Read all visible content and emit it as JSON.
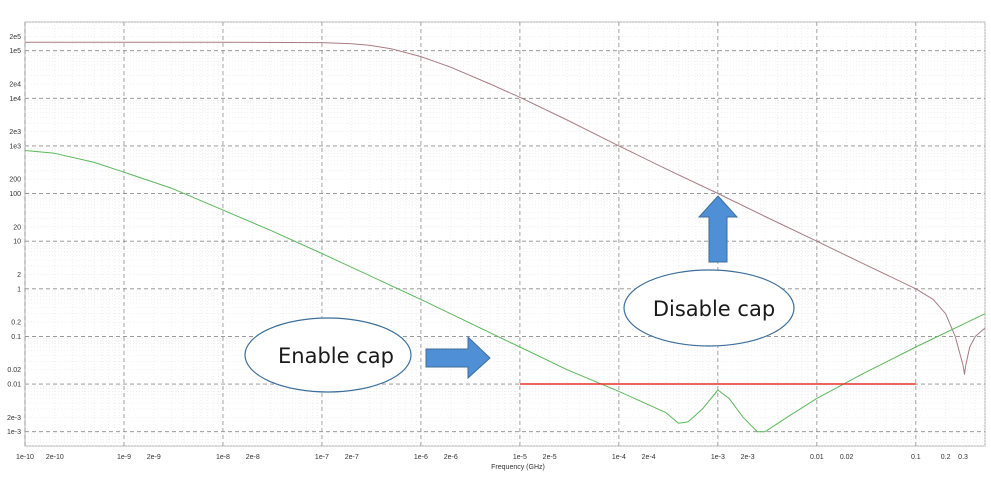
{
  "chart_data": {
    "type": "line",
    "title": "",
    "xlabel": "Frequency (GHz)",
    "ylabel": "",
    "x_scale": "log",
    "y_scale": "log",
    "xlim": [
      1e-10,
      0.5
    ],
    "ylim": [
      0.0005,
      400000
    ],
    "grid": true,
    "x_ticks": [
      {
        "v": 1e-10,
        "label": "1e-10"
      },
      {
        "v": 2e-10,
        "label": "2e-10"
      },
      {
        "v": 1e-09,
        "label": "1e-9"
      },
      {
        "v": 2e-09,
        "label": "2e-9"
      },
      {
        "v": 1e-08,
        "label": "1e-8"
      },
      {
        "v": 2e-08,
        "label": "2e-8"
      },
      {
        "v": 1e-07,
        "label": "1e-7"
      },
      {
        "v": 2e-07,
        "label": "2e-7"
      },
      {
        "v": 1e-06,
        "label": "1e-6"
      },
      {
        "v": 2e-06,
        "label": "2e-6"
      },
      {
        "v": 1e-05,
        "label": "1e-5"
      },
      {
        "v": 2e-05,
        "label": "2e-5"
      },
      {
        "v": 0.0001,
        "label": "1e-4"
      },
      {
        "v": 0.0002,
        "label": "2e-4"
      },
      {
        "v": 0.001,
        "label": "1e-3"
      },
      {
        "v": 0.002,
        "label": "2e-3"
      },
      {
        "v": 0.01,
        "label": "0.01"
      },
      {
        "v": 0.02,
        "label": "0.02"
      },
      {
        "v": 0.1,
        "label": "0.1"
      },
      {
        "v": 0.2,
        "label": "0.2"
      },
      {
        "v": 0.3,
        "label": "0.3"
      }
    ],
    "y_ticks": [
      {
        "v": 200000.0,
        "label": "2e5"
      },
      {
        "v": 100000.0,
        "label": "1e5"
      },
      {
        "v": 20000.0,
        "label": "2e4"
      },
      {
        "v": 10000.0,
        "label": "1e4"
      },
      {
        "v": 2000.0,
        "label": "2e3"
      },
      {
        "v": 1000.0,
        "label": "1e3"
      },
      {
        "v": 200,
        "label": "200"
      },
      {
        "v": 100,
        "label": "100"
      },
      {
        "v": 20,
        "label": "20"
      },
      {
        "v": 10,
        "label": "10"
      },
      {
        "v": 2,
        "label": "2"
      },
      {
        "v": 1,
        "label": "1"
      },
      {
        "v": 0.2,
        "label": "0.2"
      },
      {
        "v": 0.1,
        "label": "0.1"
      },
      {
        "v": 0.02,
        "label": "0.02"
      },
      {
        "v": 0.01,
        "label": "0.01"
      },
      {
        "v": 0.002,
        "label": "2e-3"
      },
      {
        "v": 0.001,
        "label": "1e-3"
      }
    ],
    "series": [
      {
        "color": "#a87c84",
        "x": [
          1e-10,
          1e-09,
          1e-08,
          1e-07,
          2e-07,
          3e-07,
          5e-07,
          1e-06,
          2e-06,
          5e-06,
          1e-05,
          3e-05,
          0.0001,
          0.0003,
          0.001,
          0.003,
          0.01,
          0.03,
          0.1,
          0.15,
          0.2,
          0.25,
          0.3,
          0.31,
          0.32,
          0.35,
          0.4,
          0.5
        ],
        "y": [
          150000,
          150000,
          150000,
          148000,
          140000,
          130000,
          110000,
          75000,
          45000,
          20000,
          10500,
          3500,
          1000,
          330,
          100,
          33,
          10,
          3.3,
          1.0,
          0.6,
          0.3,
          0.1,
          0.025,
          0.016,
          0.025,
          0.06,
          0.1,
          0.15
        ]
      },
      {
        "color": "#5cb85c",
        "x": [
          1e-10,
          2e-10,
          5e-10,
          1e-09,
          3e-09,
          1e-08,
          3e-08,
          1e-07,
          1e-06,
          1e-05,
          3e-05,
          0.0001,
          0.0003,
          0.0004,
          0.0005,
          0.0007,
          0.001,
          0.0013,
          0.0018,
          0.0025,
          0.003,
          0.005,
          0.01,
          0.03,
          0.1,
          0.3,
          0.5
        ],
        "y": [
          800,
          700,
          450,
          280,
          130,
          45,
          17,
          5.5,
          0.6,
          0.06,
          0.02,
          0.007,
          0.0025,
          0.0015,
          0.0016,
          0.003,
          0.0075,
          0.005,
          0.002,
          0.001,
          0.001,
          0.002,
          0.005,
          0.017,
          0.06,
          0.18,
          0.3
        ]
      },
      {
        "color": "#e8312a",
        "x": [
          1e-05,
          0.1
        ],
        "y": [
          0.01,
          0.01
        ]
      }
    ],
    "annotations": [
      {
        "text": "Enable cap",
        "arrow": "right"
      },
      {
        "text": "Disable cap",
        "arrow": "up"
      }
    ]
  }
}
